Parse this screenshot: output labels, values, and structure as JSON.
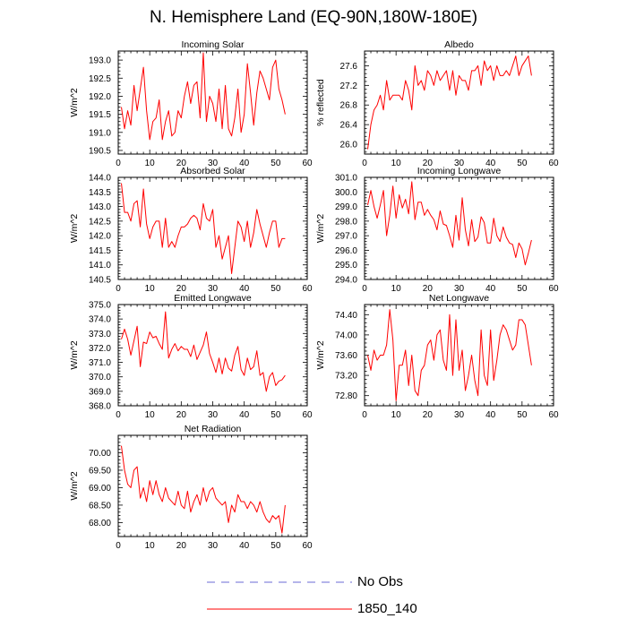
{
  "title": "N. Hemisphere Land (EQ-90N,180W-180E)",
  "legend": [
    {
      "label": "No Obs",
      "color": "#6b6bd6",
      "style": "dashed"
    },
    {
      "label": "1850_140",
      "color": "#ff0000",
      "style": "solid"
    }
  ],
  "chart_data": [
    {
      "type": "line",
      "title": "Incoming Solar",
      "ylabel": "W/m^2",
      "xlabel": "",
      "xlim": [
        0,
        60
      ],
      "ylim": [
        190.4,
        193.25
      ],
      "xticks": [
        0,
        10,
        20,
        30,
        40,
        50,
        60
      ],
      "yticks": [
        190.5,
        191.0,
        191.5,
        192.0,
        192.5,
        193.0
      ],
      "ytick_labels": [
        "190.5",
        "191.0",
        "191.5",
        "192.0",
        "192.5",
        "193.0"
      ],
      "series": [
        {
          "name": "1850_140",
          "x": [
            1,
            2,
            3,
            4,
            5,
            6,
            7,
            8,
            9,
            10,
            11,
            12,
            13,
            14,
            15,
            16,
            17,
            18,
            19,
            20,
            21,
            22,
            23,
            24,
            25,
            26,
            27,
            28,
            29,
            30,
            31,
            32,
            33,
            34,
            35,
            36,
            37,
            38,
            39,
            40,
            41,
            42,
            43,
            44,
            45,
            46,
            47,
            48,
            49,
            50,
            51,
            52,
            53
          ],
          "values": [
            191.7,
            191.1,
            191.6,
            191.2,
            192.3,
            191.6,
            192.2,
            192.8,
            191.6,
            190.8,
            191.3,
            191.4,
            191.9,
            190.8,
            191.3,
            191.6,
            190.9,
            191.0,
            191.6,
            191.4,
            192.0,
            192.4,
            191.8,
            192.3,
            192.4,
            191.4,
            193.2,
            191.3,
            192.0,
            191.8,
            191.3,
            192.2,
            191.1,
            192.3,
            191.1,
            190.9,
            191.4,
            192.2,
            191.0,
            191.5,
            192.9,
            192.1,
            191.2,
            192.1,
            192.7,
            192.5,
            192.2,
            191.9,
            192.8,
            193.0,
            192.2,
            191.9,
            191.5
          ]
        }
      ]
    },
    {
      "type": "line",
      "title": "Albedo",
      "ylabel": "% reflected",
      "xlabel": "",
      "xlim": [
        0,
        60
      ],
      "ylim": [
        25.8,
        27.9
      ],
      "xticks": [
        0,
        10,
        20,
        30,
        40,
        50,
        60
      ],
      "yticks": [
        26.0,
        26.4,
        26.8,
        27.2,
        27.6
      ],
      "ytick_labels": [
        "26.0",
        "26.4",
        "26.8",
        "27.2",
        "27.6"
      ],
      "series": [
        {
          "name": "1850_140",
          "x": [
            1,
            2,
            3,
            4,
            5,
            6,
            7,
            8,
            9,
            10,
            11,
            12,
            13,
            14,
            15,
            16,
            17,
            18,
            19,
            20,
            21,
            22,
            23,
            24,
            25,
            26,
            27,
            28,
            29,
            30,
            31,
            32,
            33,
            34,
            35,
            36,
            37,
            38,
            39,
            40,
            41,
            42,
            43,
            44,
            45,
            46,
            47,
            48,
            49,
            50,
            51,
            52,
            53
          ],
          "values": [
            25.9,
            26.4,
            26.7,
            26.8,
            27.0,
            26.7,
            27.3,
            26.9,
            27.0,
            27.0,
            27.0,
            26.9,
            27.3,
            27.1,
            26.7,
            27.6,
            27.2,
            27.3,
            27.1,
            27.5,
            27.4,
            27.2,
            27.5,
            27.3,
            27.4,
            27.5,
            27.1,
            27.5,
            27.0,
            27.4,
            27.3,
            27.3,
            27.1,
            27.5,
            27.5,
            27.6,
            27.2,
            27.7,
            27.5,
            27.6,
            27.3,
            27.6,
            27.4,
            27.4,
            27.5,
            27.4,
            27.6,
            27.8,
            27.4,
            27.6,
            27.7,
            27.8,
            27.4
          ]
        }
      ]
    },
    {
      "type": "line",
      "title": "Absorbed Solar",
      "ylabel": "W/m^2",
      "xlabel": "",
      "xlim": [
        0,
        60
      ],
      "ylim": [
        140.5,
        144.0
      ],
      "xticks": [
        0,
        10,
        20,
        30,
        40,
        50,
        60
      ],
      "yticks": [
        140.5,
        141.0,
        141.5,
        142.0,
        142.5,
        143.0,
        143.5,
        144.0
      ],
      "ytick_labels": [
        "140.5",
        "141.0",
        "141.5",
        "142.0",
        "142.5",
        "143.0",
        "143.5",
        "144.0"
      ],
      "series": [
        {
          "name": "1850_140",
          "x": [
            1,
            2,
            3,
            4,
            5,
            6,
            7,
            8,
            9,
            10,
            11,
            12,
            13,
            14,
            15,
            16,
            17,
            18,
            19,
            20,
            21,
            22,
            23,
            24,
            25,
            26,
            27,
            28,
            29,
            30,
            31,
            32,
            33,
            34,
            35,
            36,
            37,
            38,
            39,
            40,
            41,
            42,
            43,
            44,
            45,
            46,
            47,
            48,
            49,
            50,
            51,
            52,
            53
          ],
          "values": [
            143.8,
            142.8,
            142.8,
            142.5,
            143.1,
            143.2,
            142.3,
            143.6,
            142.4,
            141.9,
            142.3,
            142.5,
            142.5,
            141.6,
            142.6,
            141.6,
            141.8,
            141.6,
            142.0,
            142.3,
            142.3,
            142.4,
            142.6,
            142.7,
            142.6,
            142.2,
            143.1,
            142.6,
            142.5,
            142.9,
            141.6,
            142.0,
            141.2,
            141.6,
            142.0,
            140.7,
            141.6,
            142.5,
            142.3,
            141.8,
            142.5,
            141.6,
            142.1,
            142.9,
            142.4,
            142.0,
            141.6,
            142.1,
            142.5,
            142.5,
            141.6,
            141.9,
            141.9
          ]
        }
      ]
    },
    {
      "type": "line",
      "title": "Incoming Longwave",
      "ylabel": "W/m^2",
      "xlabel": "",
      "xlim": [
        0,
        60
      ],
      "ylim": [
        294.0,
        301.0
      ],
      "xticks": [
        0,
        10,
        20,
        30,
        40,
        50,
        60
      ],
      "yticks": [
        294.0,
        295.0,
        296.0,
        297.0,
        298.0,
        299.0,
        300.0,
        301.0
      ],
      "ytick_labels": [
        "294.0",
        "295.0",
        "296.0",
        "297.0",
        "298.0",
        "299.0",
        "300.0",
        "301.0"
      ],
      "series": [
        {
          "name": "1850_140",
          "x": [
            1,
            2,
            3,
            4,
            5,
            6,
            7,
            8,
            9,
            10,
            11,
            12,
            13,
            14,
            15,
            16,
            17,
            18,
            19,
            20,
            21,
            22,
            23,
            24,
            25,
            26,
            27,
            28,
            29,
            30,
            31,
            32,
            33,
            34,
            35,
            36,
            37,
            38,
            39,
            40,
            41,
            42,
            43,
            44,
            45,
            46,
            47,
            48,
            49,
            50,
            51,
            52,
            53
          ],
          "values": [
            299.1,
            300.1,
            299.0,
            298.2,
            299.1,
            300.1,
            297.0,
            298.4,
            300.4,
            298.2,
            299.8,
            298.9,
            299.5,
            298.5,
            300.7,
            298.1,
            299.3,
            299.3,
            298.4,
            298.8,
            298.4,
            298.1,
            297.4,
            298.7,
            297.8,
            297.7,
            297.0,
            296.2,
            298.4,
            296.7,
            299.6,
            297.4,
            296.3,
            298.1,
            296.6,
            296.9,
            298.3,
            297.9,
            296.5,
            296.5,
            298.2,
            297.0,
            296.6,
            297.6,
            296.9,
            296.5,
            296.4,
            295.5,
            296.5,
            296.1,
            295.0,
            295.8,
            296.7
          ]
        }
      ]
    },
    {
      "type": "line",
      "title": "Emitted Longwave",
      "ylabel": "W/m^2",
      "xlabel": "",
      "xlim": [
        0,
        60
      ],
      "ylim": [
        368.0,
        375.0
      ],
      "xticks": [
        0,
        10,
        20,
        30,
        40,
        50,
        60
      ],
      "yticks": [
        368.0,
        369.0,
        370.0,
        371.0,
        372.0,
        373.0,
        374.0,
        375.0
      ],
      "ytick_labels": [
        "368.0",
        "369.0",
        "370.0",
        "371.0",
        "372.0",
        "373.0",
        "374.0",
        "375.0"
      ],
      "series": [
        {
          "name": "1850_140",
          "x": [
            1,
            2,
            3,
            4,
            5,
            6,
            7,
            8,
            9,
            10,
            11,
            12,
            13,
            14,
            15,
            16,
            17,
            18,
            19,
            20,
            21,
            22,
            23,
            24,
            25,
            26,
            27,
            28,
            29,
            30,
            31,
            32,
            33,
            34,
            35,
            36,
            37,
            38,
            39,
            40,
            41,
            42,
            43,
            44,
            45,
            46,
            47,
            48,
            49,
            50,
            51,
            52,
            53
          ],
          "values": [
            372.6,
            373.3,
            372.6,
            371.5,
            372.5,
            373.5,
            370.7,
            372.4,
            372.3,
            373.1,
            372.7,
            372.8,
            372.3,
            371.9,
            374.5,
            371.3,
            371.9,
            372.3,
            371.8,
            372.1,
            371.9,
            371.9,
            371.4,
            372.2,
            371.2,
            371.7,
            372.2,
            373.1,
            371.6,
            371.0,
            370.3,
            371.3,
            370.2,
            371.3,
            370.6,
            370.4,
            371.5,
            372.1,
            370.5,
            370.1,
            371.3,
            370.5,
            370.7,
            371.8,
            370.1,
            370.3,
            369.0,
            370.0,
            370.3,
            369.4,
            369.7,
            369.8,
            370.1
          ]
        }
      ]
    },
    {
      "type": "line",
      "title": "Net Longwave",
      "ylabel": "W/m^2",
      "xlabel": "",
      "xlim": [
        0,
        60
      ],
      "ylim": [
        72.6,
        74.6
      ],
      "xticks": [
        0,
        10,
        20,
        30,
        40,
        50,
        60
      ],
      "yticks": [
        72.8,
        73.2,
        73.6,
        74.0,
        74.4
      ],
      "ytick_labels": [
        "72.80",
        "73.20",
        "73.60",
        "74.00",
        "74.40"
      ],
      "series": [
        {
          "name": "1850_140",
          "x": [
            1,
            2,
            3,
            4,
            5,
            6,
            7,
            8,
            9,
            10,
            11,
            12,
            13,
            14,
            15,
            16,
            17,
            18,
            19,
            20,
            21,
            22,
            23,
            24,
            25,
            26,
            27,
            28,
            29,
            30,
            31,
            32,
            33,
            34,
            35,
            36,
            37,
            38,
            39,
            40,
            41,
            42,
            43,
            44,
            45,
            46,
            47,
            48,
            49,
            50,
            51,
            52,
            53
          ],
          "values": [
            73.6,
            73.3,
            73.7,
            73.5,
            73.6,
            73.6,
            73.8,
            74.5,
            73.9,
            72.7,
            73.4,
            73.4,
            73.7,
            73.0,
            73.6,
            72.9,
            72.8,
            73.3,
            73.4,
            73.8,
            73.9,
            73.5,
            74.0,
            74.1,
            73.5,
            73.3,
            74.4,
            73.2,
            74.3,
            73.3,
            73.7,
            72.9,
            73.2,
            73.6,
            73.1,
            72.8,
            74.1,
            73.2,
            73.0,
            74.1,
            73.1,
            73.5,
            74.0,
            74.2,
            74.1,
            73.9,
            73.7,
            73.8,
            74.3,
            74.3,
            74.2,
            73.8,
            73.4
          ]
        }
      ]
    },
    {
      "type": "line",
      "title": "Net Radiation",
      "ylabel": "W/m^2",
      "xlabel": "",
      "xlim": [
        0,
        60
      ],
      "ylim": [
        67.6,
        70.5
      ],
      "xticks": [
        0,
        10,
        20,
        30,
        40,
        50,
        60
      ],
      "yticks": [
        68.0,
        68.5,
        69.0,
        69.5,
        70.0
      ],
      "ytick_labels": [
        "68.00",
        "68.50",
        "69.00",
        "69.50",
        "70.00"
      ],
      "series": [
        {
          "name": "1850_140",
          "x": [
            1,
            2,
            3,
            4,
            5,
            6,
            7,
            8,
            9,
            10,
            11,
            12,
            13,
            14,
            15,
            16,
            17,
            18,
            19,
            20,
            21,
            22,
            23,
            24,
            25,
            26,
            27,
            28,
            29,
            30,
            31,
            32,
            33,
            34,
            35,
            36,
            37,
            38,
            39,
            40,
            41,
            42,
            43,
            44,
            45,
            46,
            47,
            48,
            49,
            50,
            51,
            52,
            53
          ],
          "values": [
            70.2,
            69.5,
            69.1,
            69.0,
            69.5,
            69.6,
            68.7,
            69.0,
            68.6,
            69.2,
            68.8,
            69.2,
            68.8,
            68.6,
            69.0,
            68.7,
            68.6,
            68.5,
            68.9,
            68.5,
            68.4,
            68.9,
            68.3,
            68.6,
            68.8,
            68.5,
            69.0,
            68.6,
            68.9,
            69.0,
            68.7,
            68.6,
            68.5,
            68.6,
            68.0,
            68.5,
            68.3,
            68.8,
            68.6,
            68.6,
            68.4,
            68.6,
            68.5,
            68.3,
            68.6,
            68.3,
            68.1,
            68.0,
            68.2,
            68.1,
            68.2,
            67.7,
            68.5
          ]
        }
      ]
    }
  ]
}
